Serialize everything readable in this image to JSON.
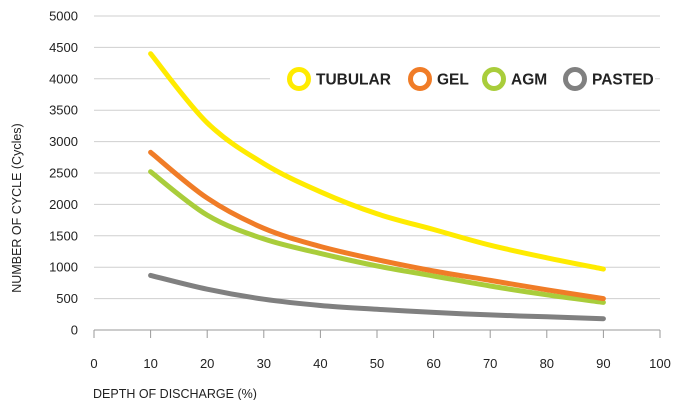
{
  "chart_data": {
    "type": "line",
    "xlabel": "DEPTH OF DISCHARGE (%)",
    "ylabel": "NUMBER OF CYCLE (Cycles)",
    "xlim": [
      0,
      100
    ],
    "ylim": [
      0,
      5000
    ],
    "x_ticks": [
      0,
      10,
      20,
      30,
      40,
      50,
      60,
      70,
      80,
      90,
      100
    ],
    "y_ticks": [
      0,
      500,
      1000,
      1500,
      2000,
      2500,
      3000,
      3500,
      4000,
      4500,
      5000
    ],
    "grid": "horizontal",
    "legend_position": "top-right",
    "x": [
      10,
      20,
      30,
      40,
      50,
      60,
      70,
      80,
      90
    ],
    "series": [
      {
        "name": "TUBULAR",
        "color": "#ffeb00",
        "values": [
          4400,
          3300,
          2650,
          2200,
          1850,
          1600,
          1350,
          1150,
          970
        ]
      },
      {
        "name": "GEL",
        "color": "#f07c27",
        "values": [
          2830,
          2100,
          1620,
          1330,
          1120,
          940,
          790,
          640,
          500
        ]
      },
      {
        "name": "AGM",
        "color": "#a9cd3b",
        "values": [
          2520,
          1830,
          1450,
          1220,
          1020,
          860,
          700,
          560,
          440
        ]
      },
      {
        "name": "PASTED",
        "color": "#808080",
        "values": [
          870,
          650,
          490,
          390,
          330,
          280,
          240,
          210,
          180
        ]
      }
    ]
  }
}
